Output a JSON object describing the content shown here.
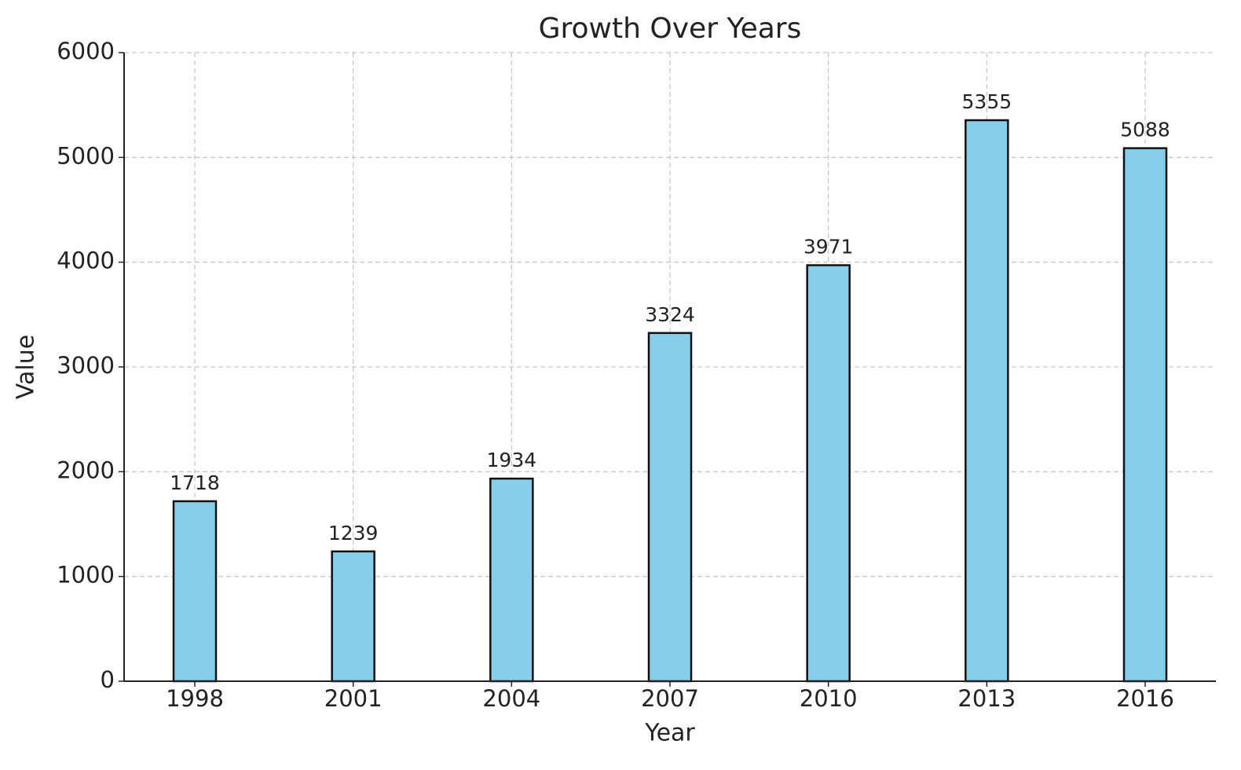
{
  "chart_data": {
    "type": "bar",
    "title": "Growth Over Years",
    "x_label": "Year",
    "y_label": "Value",
    "categories": [
      "1998",
      "2001",
      "2004",
      "2007",
      "2010",
      "2013",
      "2016"
    ],
    "values": [
      1718,
      1239,
      1934,
      3324,
      3971,
      5355,
      5088
    ],
    "color": "#87ceeb",
    "edge_color": "#111111",
    "ylim": [
      0,
      6000
    ],
    "yticks": [
      0,
      1000,
      2000,
      3000,
      4000,
      5000,
      6000
    ],
    "grid": true
  }
}
